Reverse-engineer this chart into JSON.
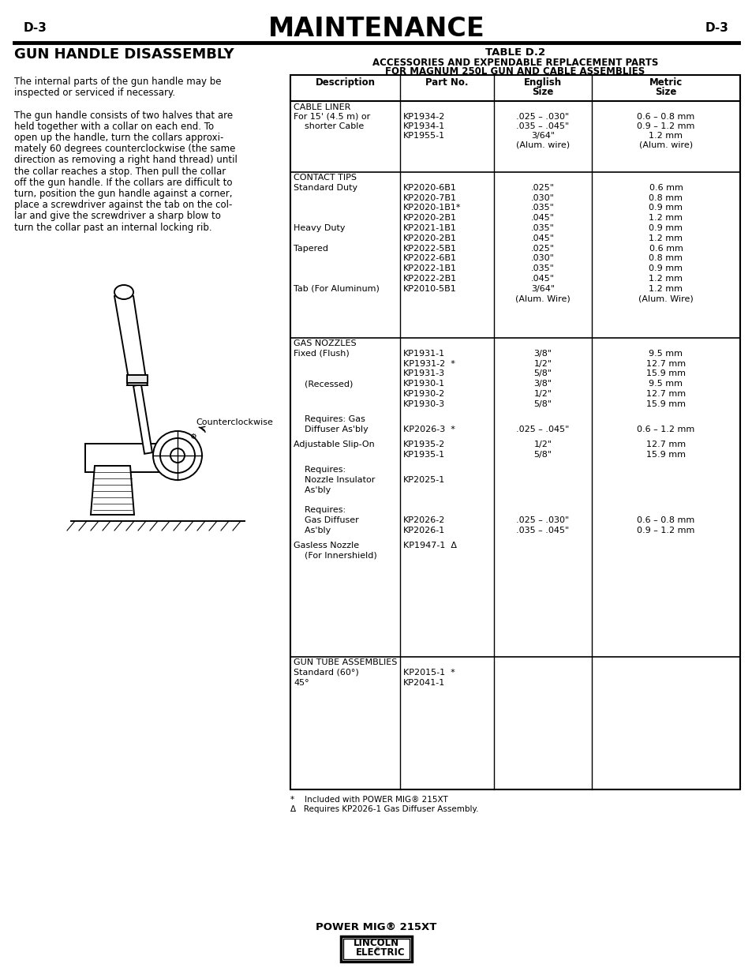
{
  "page_label": "D-3",
  "title": "MAINTENANCE",
  "section_title": "GUN HANDLE DISASSEMBLY",
  "table_title_line1": "TABLE D.2",
  "table_title_line2": "ACCESSORIES AND EXPENDABLE REPLACEMENT PARTS",
  "table_title_line3": "FOR MAGNUM 250L GUN AND CABLE ASSEMBLIES",
  "footer_note1": "*    Included with POWER MIG® 215XT",
  "footer_note2": "Δ   Requires KP2026-1 Gas Diffuser Assembly.",
  "bottom_label": "POWER MIG® 215XT",
  "bg_color": "#ffffff",
  "text_color": "#000000"
}
